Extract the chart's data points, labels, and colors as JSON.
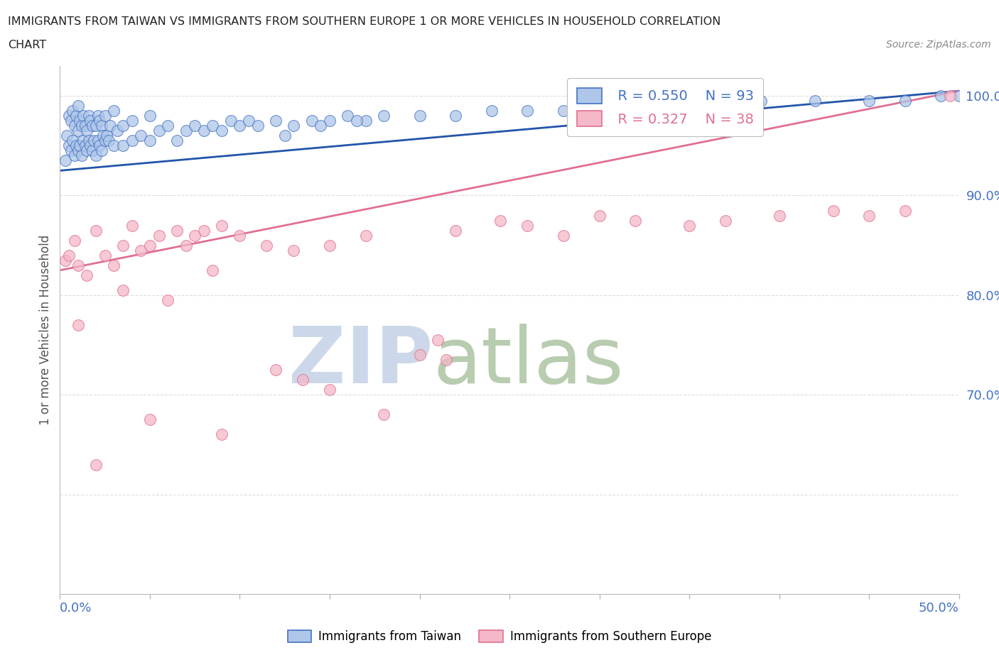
{
  "title_line1": "IMMIGRANTS FROM TAIWAN VS IMMIGRANTS FROM SOUTHERN EUROPE 1 OR MORE VEHICLES IN HOUSEHOLD CORRELATION",
  "title_line2": "CHART",
  "source": "Source: ZipAtlas.com",
  "ylabel": "1 or more Vehicles in Household",
  "xlim": [
    0.0,
    50.0
  ],
  "ylim": [
    50.0,
    103.0
  ],
  "legend_r1": "R = 0.550",
  "legend_n1": "N = 93",
  "legend_r2": "R = 0.327",
  "legend_n2": "N = 38",
  "color_taiwan_fill": "#aec6e8",
  "color_taiwan_edge": "#4472c4",
  "color_southern_fill": "#f4b8c8",
  "color_southern_edge": "#e07090",
  "color_taiwan_line": "#2255aa",
  "color_southern_line": "#e07090",
  "title_color": "#222222",
  "axis_color": "#bbbbbb",
  "grid_color": "#dddddd",
  "tick_label_color": "#4472c4",
  "watermark_zip_color": "#ccd8ea",
  "watermark_atlas_color": "#b8ccb0",
  "taiwan_x": [
    0.3,
    0.4,
    0.5,
    0.5,
    0.6,
    0.6,
    0.7,
    0.7,
    0.8,
    0.8,
    0.9,
    0.9,
    1.0,
    1.0,
    1.0,
    1.1,
    1.1,
    1.2,
    1.2,
    1.3,
    1.3,
    1.4,
    1.4,
    1.5,
    1.5,
    1.6,
    1.6,
    1.7,
    1.7,
    1.8,
    1.8,
    1.9,
    2.0,
    2.0,
    2.1,
    2.1,
    2.2,
    2.2,
    2.3,
    2.3,
    2.4,
    2.5,
    2.5,
    2.6,
    2.7,
    2.8,
    3.0,
    3.0,
    3.2,
    3.5,
    3.5,
    4.0,
    4.0,
    4.5,
    5.0,
    5.0,
    5.5,
    6.0,
    6.5,
    7.0,
    7.5,
    8.0,
    8.5,
    9.0,
    9.5,
    10.0,
    10.5,
    11.0,
    12.0,
    13.0,
    14.0,
    15.0,
    16.0,
    17.0,
    18.0,
    20.0,
    22.0,
    24.0,
    26.0,
    28.0,
    30.0,
    33.0,
    35.0,
    37.0,
    39.0,
    42.0,
    45.0,
    47.0,
    49.0,
    50.0,
    12.5,
    14.5,
    16.5
  ],
  "taiwan_y": [
    93.5,
    96.0,
    95.0,
    98.0,
    94.5,
    97.5,
    95.5,
    98.5,
    94.0,
    97.0,
    95.0,
    98.0,
    94.5,
    96.5,
    99.0,
    95.0,
    97.5,
    94.0,
    97.0,
    95.5,
    98.0,
    95.0,
    97.0,
    94.5,
    96.5,
    95.5,
    98.0,
    95.0,
    97.5,
    94.5,
    97.0,
    95.5,
    94.0,
    97.0,
    95.5,
    98.0,
    95.0,
    97.5,
    94.5,
    97.0,
    96.0,
    95.5,
    98.0,
    96.0,
    95.5,
    97.0,
    95.0,
    98.5,
    96.5,
    95.0,
    97.0,
    95.5,
    97.5,
    96.0,
    95.5,
    98.0,
    96.5,
    97.0,
    95.5,
    96.5,
    97.0,
    96.5,
    97.0,
    96.5,
    97.5,
    97.0,
    97.5,
    97.0,
    97.5,
    97.0,
    97.5,
    97.5,
    98.0,
    97.5,
    98.0,
    98.0,
    98.0,
    98.5,
    98.5,
    98.5,
    99.0,
    99.0,
    99.0,
    99.0,
    99.5,
    99.5,
    99.5,
    99.5,
    100.0,
    100.0,
    96.0,
    97.0,
    97.5
  ],
  "southern_x": [
    0.3,
    0.5,
    0.8,
    1.0,
    1.5,
    2.0,
    2.5,
    3.0,
    3.5,
    4.0,
    4.5,
    5.0,
    5.5,
    6.5,
    7.0,
    8.0,
    9.0,
    10.0,
    11.5,
    13.0,
    15.0,
    17.0,
    20.0,
    22.0,
    24.5,
    26.0,
    28.0,
    30.0,
    32.0,
    35.0,
    37.0,
    40.0,
    43.0,
    45.0,
    47.0,
    49.5,
    18.0,
    7.5
  ],
  "southern_y": [
    83.5,
    84.0,
    85.5,
    83.0,
    82.0,
    86.5,
    84.0,
    83.0,
    85.0,
    87.0,
    84.5,
    85.0,
    86.0,
    86.5,
    85.0,
    86.5,
    87.0,
    86.0,
    85.0,
    84.5,
    85.0,
    86.0,
    74.0,
    86.5,
    87.5,
    87.0,
    86.0,
    88.0,
    87.5,
    87.0,
    87.5,
    88.0,
    88.5,
    88.0,
    88.5,
    100.0,
    68.0,
    86.0
  ],
  "southern_outlier_x": [
    1.0,
    3.5,
    6.0,
    8.5,
    12.0,
    15.0,
    21.0
  ],
  "southern_outlier_y": [
    77.0,
    80.5,
    79.5,
    82.5,
    72.5,
    70.5,
    75.5
  ],
  "southern_low_x": [
    2.0,
    5.0,
    9.0,
    13.5,
    21.5
  ],
  "southern_low_y": [
    63.0,
    67.5,
    66.0,
    71.5,
    73.5
  ],
  "taiwan_line_x0": 0.0,
  "taiwan_line_y0": 92.5,
  "taiwan_line_x1": 50.0,
  "taiwan_line_y1": 100.5,
  "southern_line_x0": 0.0,
  "southern_line_y0": 82.5,
  "southern_line_x1": 50.0,
  "southern_line_y1": 100.5
}
